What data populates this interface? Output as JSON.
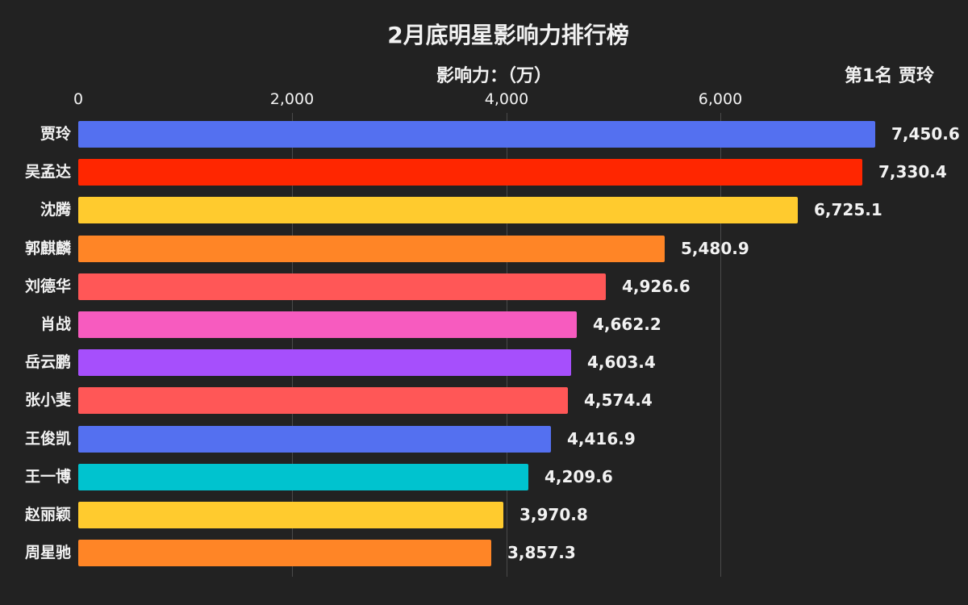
{
  "chart_data": {
    "type": "bar",
    "orientation": "horizontal",
    "title": "2月底明星影响力排行榜",
    "xlabel": "影响力：（万）",
    "ylabel": "",
    "annotation": "第1名 贾玲",
    "xlim": [
      0,
      8000
    ],
    "xticks": [
      0,
      2000,
      4000,
      6000
    ],
    "xtick_labels": [
      "0",
      "2,000",
      "4,000",
      "6,000"
    ],
    "grid": true,
    "categories": [
      "贾玲",
      "吴孟达",
      "沈腾",
      "郭麒麟",
      "刘德华",
      "肖战",
      "岳云鹏",
      "张小斐",
      "王俊凯",
      "王一博",
      "赵丽颖",
      "周星驰"
    ],
    "values": [
      7450.6,
      7330.4,
      6725.1,
      5480.9,
      4926.6,
      4662.2,
      4603.4,
      4574.4,
      4416.9,
      4209.6,
      3970.8,
      3857.3
    ],
    "value_labels": [
      "7,450.6",
      "7,330.4",
      "6,725.1",
      "5,480.9",
      "4,926.6",
      "4,662.2",
      "4,603.4",
      "4,574.4",
      "4,416.9",
      "4,209.6",
      "3,970.8",
      "3,857.3"
    ],
    "colors": [
      "#5470f0",
      "#ff2600",
      "#ffcb2e",
      "#ff8526",
      "#ff5757",
      "#f75bbf",
      "#a64ffc",
      "#ff5757",
      "#5470f0",
      "#00c3cf",
      "#ffcb2e",
      "#ff8526"
    ]
  },
  "header": {
    "title": "2月底明星影响力排行榜",
    "unit_label": "影响力：（万）",
    "leader_label": "第1名 贾玲"
  },
  "style": {
    "background": "#222222"
  }
}
